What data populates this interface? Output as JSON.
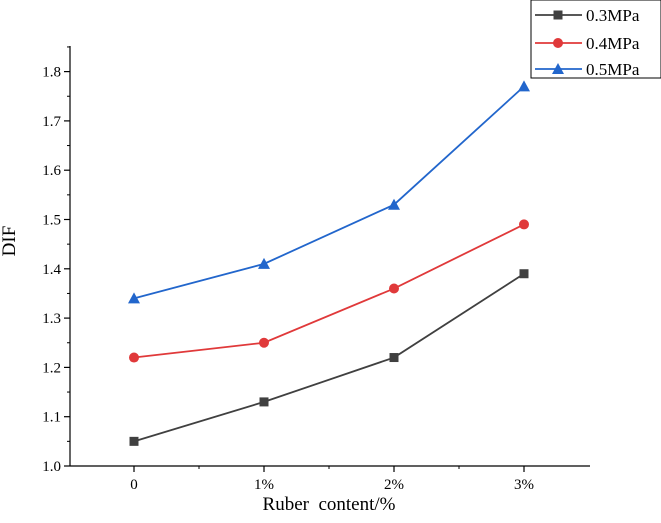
{
  "chart_data": {
    "type": "line",
    "title": "",
    "xlabel": "Ruber  content/%",
    "ylabel": "DIF",
    "categories": [
      "0",
      "1%",
      "2%",
      "3%"
    ],
    "ylim": [
      1.0,
      1.85
    ],
    "yticks": [
      1.0,
      1.1,
      1.2,
      1.3,
      1.4,
      1.5,
      1.6,
      1.7,
      1.8
    ],
    "ytick_labels": [
      "1.0",
      "1.1",
      "1.2",
      "1.3",
      "1.4",
      "1.5",
      "1.6",
      "1.7",
      "1.8"
    ],
    "grid": false,
    "legend_position": "top-right",
    "series": [
      {
        "name": "0.3MPa",
        "values": [
          1.05,
          1.13,
          1.22,
          1.39
        ],
        "color": "#404040",
        "marker": "square"
      },
      {
        "name": "0.4MPa",
        "values": [
          1.22,
          1.25,
          1.36,
          1.49
        ],
        "color": "#e0393a",
        "marker": "circle"
      },
      {
        "name": "0.5MPa",
        "values": [
          1.34,
          1.41,
          1.53,
          1.77
        ],
        "color": "#2266cc",
        "marker": "triangle"
      }
    ]
  }
}
